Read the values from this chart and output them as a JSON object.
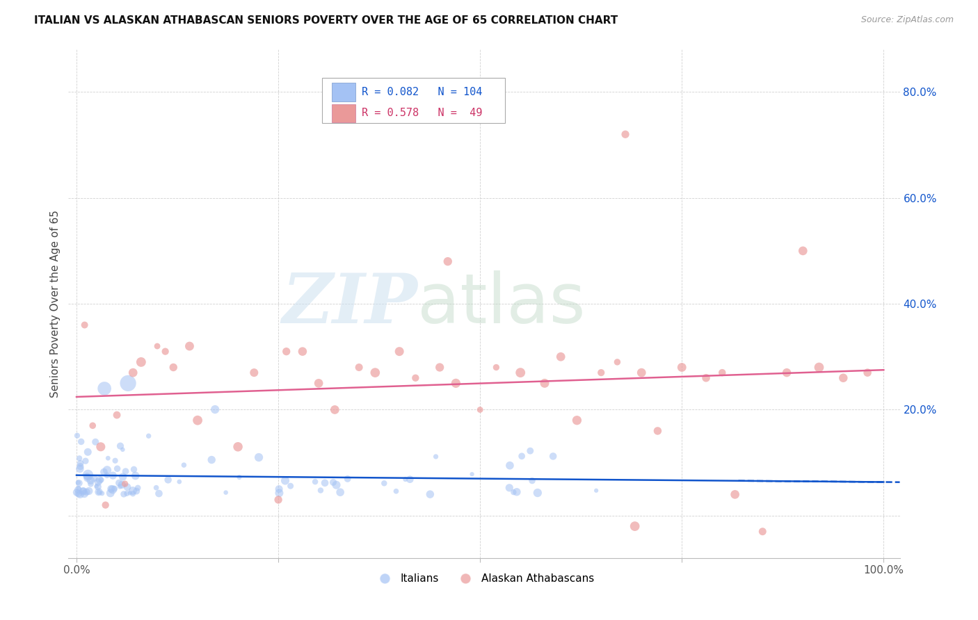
{
  "title": "ITALIAN VS ALASKAN ATHABASCAN SENIORS POVERTY OVER THE AGE OF 65 CORRELATION CHART",
  "source": "Source: ZipAtlas.com",
  "ylabel": "Seniors Poverty Over the Age of 65",
  "italian_R": 0.082,
  "italian_N": 104,
  "athabascan_R": 0.578,
  "athabascan_N": 49,
  "italian_color": "#a4c2f4",
  "athabascan_color": "#ea9999",
  "italian_line_color": "#1155cc",
  "athabascan_line_color": "#e06090",
  "background_color": "#ffffff",
  "grid_color": "#cccccc",
  "ytick_color": "#1155cc",
  "legend_border_color": "#aaaaaa",
  "italian_legend_color": "#1155cc",
  "athabascan_legend_color": "#cc3366",
  "italian_seed": 10,
  "athabascan_seed": 20
}
